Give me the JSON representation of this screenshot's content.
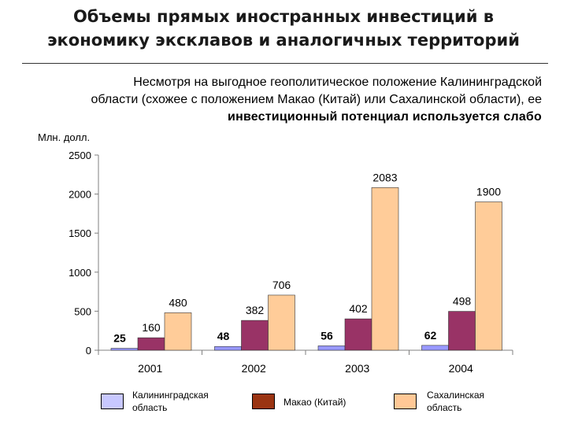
{
  "title": {
    "line1": "Объемы прямых иностранных инвестиций в",
    "line2": "экономику эксклавов и аналогичных территорий"
  },
  "subtitle": {
    "line1": "Несмотря на выгодное геополитическое положение Калининградской",
    "line2": "области (схожее с положением Макао (Китай) или Сахалинской области), ее",
    "line3": "инвестиционный потенциал используется слабо"
  },
  "chart_data": {
    "type": "bar",
    "ylabel": "Млн. долл.",
    "ylim": [
      0,
      2500
    ],
    "yticks": [
      0,
      500,
      1000,
      1500,
      2000,
      2500
    ],
    "grid": false,
    "legend": "bottom",
    "categories": [
      "2001",
      "2002",
      "2003",
      "2004"
    ],
    "series": [
      {
        "name_lines": [
          "Калининградская",
          "область"
        ],
        "values": [
          25,
          48,
          56,
          62
        ],
        "color": "#9999ff"
      },
      {
        "name_lines": [
          "Макао (Китай)"
        ],
        "values": [
          160,
          382,
          402,
          498
        ],
        "color": "#993366"
      },
      {
        "name_lines": [
          "Сахалинская",
          "область"
        ],
        "values": [
          480,
          706,
          2083,
          1900
        ],
        "color": "#ffcc99"
      }
    ]
  },
  "legend": [
    {
      "line1": "Калининградская",
      "line2": "область",
      "color": "#c8c8ff"
    },
    {
      "line1": "Макао (Китай)",
      "line2": "",
      "color": "#9a3412"
    },
    {
      "line1": "Сахалинская",
      "line2": "область",
      "color": "#ffc896"
    }
  ]
}
